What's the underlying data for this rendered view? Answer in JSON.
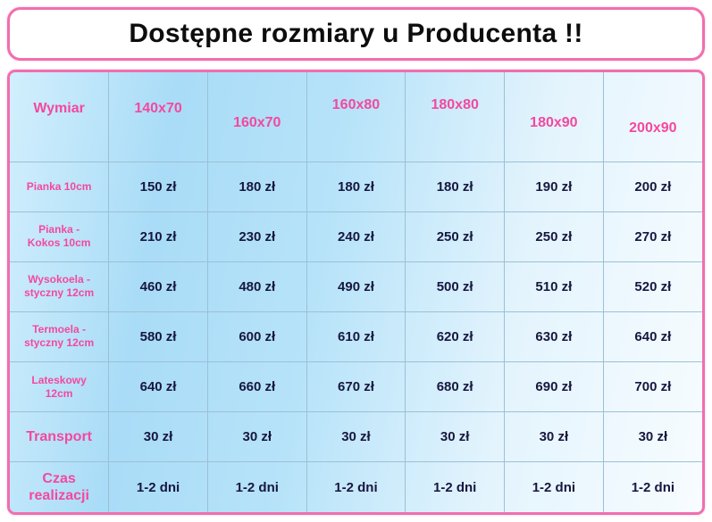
{
  "title": "Dostępne rozmiary u Producenta !!",
  "chart_data": {
    "type": "table",
    "title": "Dostępne rozmiary u Producenta !!",
    "header": {
      "label": "Wymiar",
      "sizes": [
        "140x70",
        "160x70",
        "160x80",
        "180x80",
        "180x90",
        "200x90"
      ]
    },
    "rows": [
      {
        "label": "Pianka 10cm",
        "values": [
          "150 zł",
          "180 zł",
          "180 zł",
          "180 zł",
          "190 zł",
          "200 zł"
        ]
      },
      {
        "label": "Pianka - Kokos 10cm",
        "values": [
          "210 zł",
          "230 zł",
          "240 zł",
          "250 zł",
          "250 zł",
          "270 zł"
        ]
      },
      {
        "label": "Wysokoela - styczny 12cm",
        "values": [
          "460 zł",
          "480 zł",
          "490 zł",
          "500 zł",
          "510 zł",
          "520 zł"
        ]
      },
      {
        "label": "Termoela - styczny 12cm",
        "values": [
          "580 zł",
          "600 zł",
          "610 zł",
          "620 zł",
          "630 zł",
          "640 zł"
        ]
      },
      {
        "label": "Lateskowy 12cm",
        "values": [
          "640 zł",
          "660 zł",
          "670 zł",
          "680 zł",
          "690 zł",
          "700 zł"
        ]
      },
      {
        "label": "Transport",
        "values": [
          "30 zł",
          "30 zł",
          "30 zł",
          "30 zł",
          "30 zł",
          "30 zł"
        ]
      },
      {
        "label": "Czas realizacji",
        "values": [
          "1-2 dni",
          "1-2 dni",
          "1-2 dni",
          "1-2 dni",
          "1-2 dni",
          "1-2 dni"
        ]
      }
    ]
  },
  "colors": {
    "frame_pink": "#f06fae",
    "label_pink": "#f4489f",
    "value_navy": "#17173f",
    "grid_line": "#9cc0d4",
    "bg_blue_light": "#d2effd",
    "bg_blue": "#a9dcf7",
    "bg_white": "#f7fcff",
    "title_text": "#0d0d0d"
  }
}
